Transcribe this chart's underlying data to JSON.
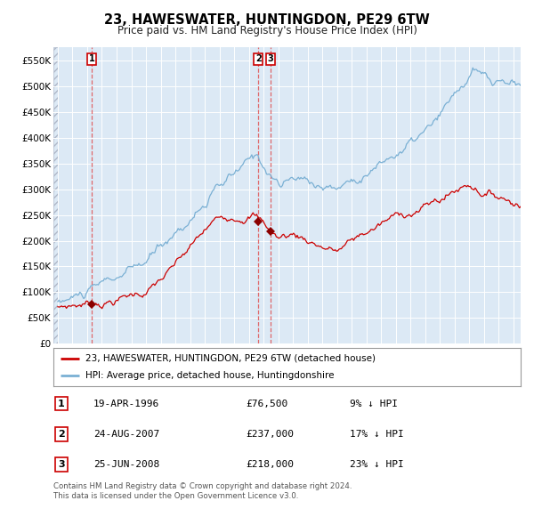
{
  "title": "23, HAWESWATER, HUNTINGDON, PE29 6TW",
  "subtitle": "Price paid vs. HM Land Registry's House Price Index (HPI)",
  "hpi_label": "HPI: Average price, detached house, Huntingdonshire",
  "price_label": "23, HAWESWATER, HUNTINGDON, PE29 6TW (detached house)",
  "bg_color": "#dce9f5",
  "hpi_color": "#7ab0d4",
  "price_color": "#cc0000",
  "marker_color": "#8b0000",
  "vline_color": "#e05050",
  "footer": "Contains HM Land Registry data © Crown copyright and database right 2024.\nThis data is licensed under the Open Government Licence v3.0.",
  "sales": [
    {
      "label": "1",
      "date_str": "19-APR-1996",
      "date_num": 1996.3,
      "price": 76500,
      "pct": "9% ↓ HPI"
    },
    {
      "label": "2",
      "date_str": "24-AUG-2007",
      "date_num": 2007.65,
      "price": 237000,
      "pct": "17% ↓ HPI"
    },
    {
      "label": "3",
      "date_str": "25-JUN-2008",
      "date_num": 2008.48,
      "price": 218000,
      "pct": "23% ↓ HPI"
    }
  ],
  "ylim": [
    0,
    575000
  ],
  "xlim": [
    1993.7,
    2025.5
  ],
  "yticks": [
    0,
    50000,
    100000,
    150000,
    200000,
    250000,
    300000,
    350000,
    400000,
    450000,
    500000,
    550000
  ],
  "ytick_labels": [
    "£0",
    "£50K",
    "£100K",
    "£150K",
    "£200K",
    "£250K",
    "£300K",
    "£350K",
    "£400K",
    "£450K",
    "£500K",
    "£550K"
  ],
  "xticks": [
    1994,
    1995,
    1996,
    1997,
    1998,
    1999,
    2000,
    2001,
    2002,
    2003,
    2004,
    2005,
    2006,
    2007,
    2008,
    2009,
    2010,
    2011,
    2012,
    2013,
    2014,
    2015,
    2016,
    2017,
    2018,
    2019,
    2020,
    2021,
    2022,
    2023,
    2024,
    2025
  ]
}
